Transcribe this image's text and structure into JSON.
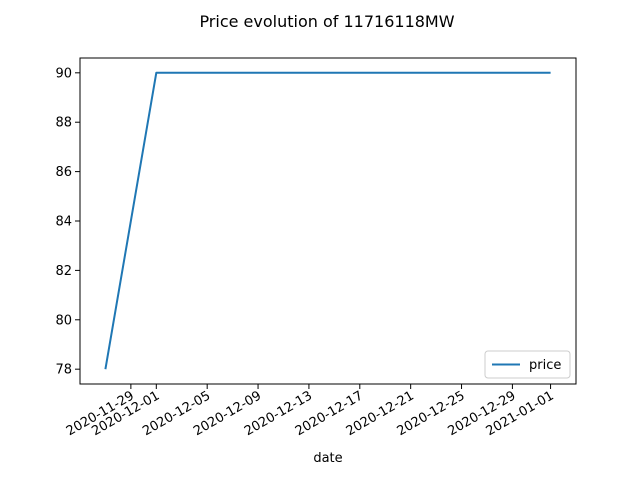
{
  "chart_data": {
    "type": "line",
    "title": "Price evolution of 11716118MW",
    "xlabel": "date",
    "ylabel": "",
    "series": [
      {
        "name": "price",
        "color": "#1f77b4",
        "x": [
          "2020-11-27",
          "2020-12-01",
          "2021-01-01"
        ],
        "y": [
          78,
          90,
          90
        ]
      }
    ],
    "x_ticks": [
      "2020-11-29",
      "2020-12-01",
      "2020-12-05",
      "2020-12-09",
      "2020-12-13",
      "2020-12-17",
      "2020-12-21",
      "2020-12-25",
      "2020-12-29",
      "2021-01-01"
    ],
    "y_ticks": [
      78,
      80,
      82,
      84,
      86,
      88,
      90
    ],
    "xlim": [
      "2020-11-25",
      "2021-01-03"
    ],
    "ylim": [
      77.4,
      90.6
    ],
    "grid": false,
    "legend_position": "lower right"
  }
}
